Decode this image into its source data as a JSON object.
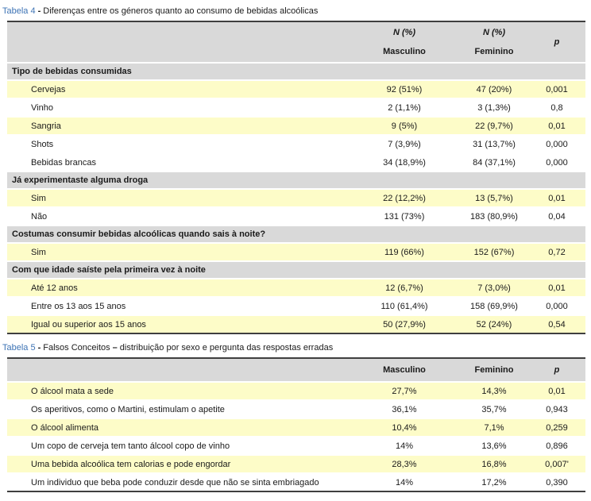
{
  "colors": {
    "title_blue": "#3E74B5",
    "header_gray": "#D9D9D9",
    "row_highlight": "#FDFCC8",
    "border_dark": "#3F3F3F",
    "text": "#1A1A1A",
    "page_bg": "#FFFFFF"
  },
  "tabela4": {
    "label": "Tabela 4",
    "title_dash": "-",
    "caption": "Diferenças entre os géneros quanto ao consumo de bebidas alcoólicas",
    "header": {
      "masculino_line1": "N (%)",
      "masculino_line2": "Masculino",
      "feminino_line1": "N (%)",
      "feminino_line2": "Feminino",
      "p": "p"
    },
    "sections": [
      {
        "title": "Tipo de bebidas consumidas",
        "rows": [
          {
            "label": "Cervejas",
            "masculino": "92 (51%)",
            "feminino": "47 (20%)",
            "p": "0,001",
            "highlight": true
          },
          {
            "label": "Vinho",
            "masculino": "2 (1,1%)",
            "feminino": "3 (1,3%)",
            "p": "0,8",
            "highlight": false
          },
          {
            "label": "Sangria",
            "masculino": "9 (5%)",
            "feminino": "22 (9,7%)",
            "p": "0,01",
            "highlight": true
          },
          {
            "label": "Shots",
            "masculino": "7 (3,9%)",
            "feminino": "31 (13,7%)",
            "p": "0,000",
            "highlight": false
          },
          {
            "label": "Bebidas brancas",
            "masculino": "34 (18,9%)",
            "feminino": "84 (37,1%)",
            "p": "0,000",
            "highlight": false
          }
        ]
      },
      {
        "title": "Já experimentaste alguma droga",
        "rows": [
          {
            "label": "Sim",
            "masculino": "22 (12,2%)",
            "feminino": "13 (5,7%)",
            "p": "0,01",
            "highlight": true
          },
          {
            "label": "Não",
            "masculino": "131 (73%)",
            "feminino": "183 (80,9%)",
            "p": "0,04",
            "highlight": false
          }
        ]
      },
      {
        "title": "Costumas consumir bebidas alcoólicas quando sais à noite?",
        "rows": [
          {
            "label": "Sim",
            "masculino": "119 (66%)",
            "feminino": "152 (67%)",
            "p": "0,72",
            "highlight": true
          }
        ]
      },
      {
        "title": "Com que idade saíste pela primeira vez à noite",
        "rows": [
          {
            "label": "Até 12 anos",
            "masculino": "12 (6,7%)",
            "feminino": "7 (3,0%)",
            "p": "0,01",
            "highlight": true
          },
          {
            "label": "Entre os 13 aos 15 anos",
            "masculino": "110 (61,4%)",
            "feminino": "158 (69,9%)",
            "p": "0,000",
            "highlight": false
          },
          {
            "label": "Igual ou superior aos 15 anos",
            "masculino": "50 (27,9%)",
            "feminino": "52 (24%)",
            "p": "0,54",
            "highlight": true
          }
        ]
      }
    ]
  },
  "tabela5": {
    "label": "Tabela 5",
    "title_dash": "-",
    "caption_part1": "Falsos Conceitos",
    "caption_endash": "–",
    "caption_part2": "distribuição por sexo e pergunta das respostas erradas",
    "header": {
      "masculino": "Masculino",
      "feminino": "Feminino",
      "p": "p"
    },
    "rows": [
      {
        "label": "O álcool mata a sede",
        "masculino": "27,7%",
        "feminino": "14,3%",
        "p": "0,01",
        "highlight": true
      },
      {
        "label": "Os aperitivos, como o Martini, estimulam o apetite",
        "masculino": "36,1%",
        "feminino": "35,7%",
        "p": "0,943",
        "highlight": false
      },
      {
        "label": "O álcool alimenta",
        "masculino": "10,4%",
        "feminino": "7,1%",
        "p": "0,259",
        "highlight": true
      },
      {
        "label": "Um copo de cerveja tem tanto álcool copo de vinho",
        "masculino": "14%",
        "feminino": "13,6%",
        "p": "0,896",
        "highlight": false
      },
      {
        "label": "Uma bebida alcoólica tem calorias e pode engordar",
        "masculino": "28,3%",
        "feminino": "16,8%",
        "p": "0,007'",
        "highlight": true
      },
      {
        "label": "Um individuo que beba pode conduzir desde que não se sinta embriagado",
        "masculino": "14%",
        "feminino": "17,2%",
        "p": "0,390",
        "highlight": false
      }
    ]
  }
}
